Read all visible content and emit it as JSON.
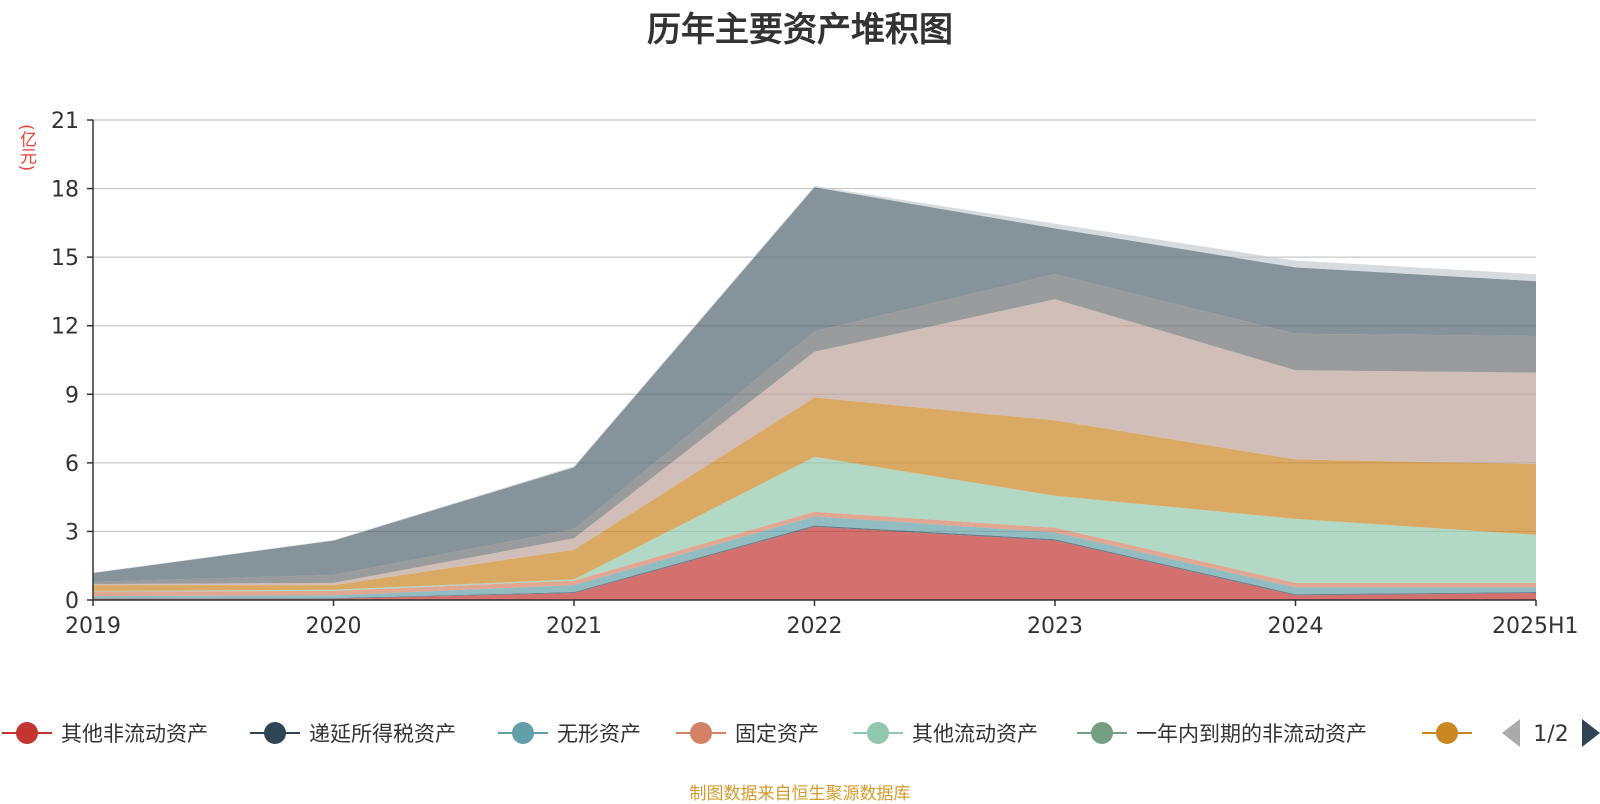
{
  "chart_data": {
    "type": "area",
    "stacked": true,
    "title": "历年主要资产堆积图",
    "unit": "(亿元)",
    "x": [
      "2019",
      "2020",
      "2021",
      "2022",
      "2023",
      "2024",
      "2025H1"
    ],
    "ylim": [
      0,
      21
    ],
    "yticks": [
      0,
      3,
      6,
      9,
      12,
      15,
      18,
      21
    ],
    "grid": true,
    "series": [
      {
        "name": "其他非流动资产",
        "color": "#c23531",
        "values": [
          0.05,
          0.05,
          0.3,
          3.2,
          2.6,
          0.2,
          0.3
        ]
      },
      {
        "name": "递延所得税资产",
        "color": "#2f4554",
        "values": [
          0.02,
          0.03,
          0.05,
          0.06,
          0.06,
          0.05,
          0.05
        ]
      },
      {
        "name": "无形资产",
        "color": "#61a0a8",
        "values": [
          0.1,
          0.12,
          0.3,
          0.4,
          0.3,
          0.3,
          0.2
        ]
      },
      {
        "name": "固定资产",
        "color": "#d48265",
        "values": [
          0.2,
          0.2,
          0.2,
          0.2,
          0.2,
          0.2,
          0.2
        ]
      },
      {
        "name": "其他流动资产",
        "color": "#91c7ae",
        "values": [
          0.03,
          0.05,
          0.05,
          2.4,
          1.4,
          2.8,
          2.1
        ]
      },
      {
        "name": "一年内到期的非流动资产",
        "color": "#749f83",
        "values": [
          0,
          0,
          0,
          0,
          0,
          0,
          0
        ]
      },
      {
        "name": "",
        "color": "#ca8622",
        "values": [
          0.25,
          0.2,
          1.3,
          2.6,
          3.3,
          2.6,
          3.1
        ]
      },
      {
        "name": "",
        "color": "#bda29a",
        "values": [
          0.05,
          0.1,
          0.5,
          2.0,
          5.3,
          3.9,
          4.0
        ]
      },
      {
        "name": "",
        "color": "#6e7074",
        "values": [
          0.1,
          0.35,
          0.4,
          0.9,
          1.1,
          1.6,
          1.6
        ]
      },
      {
        "name": "",
        "color": "#546570",
        "values": [
          0.38,
          1.5,
          2.7,
          6.3,
          2.0,
          2.9,
          2.4
        ]
      },
      {
        "name": "",
        "color": "#c4ccd3",
        "values": [
          0.02,
          0.02,
          0.05,
          0.05,
          0.2,
          0.3,
          0.3
        ]
      }
    ]
  },
  "legend": {
    "page": "1/2",
    "items": [
      {
        "label": "其他非流动资产",
        "color": "#c23531"
      },
      {
        "label": "递延所得税资产",
        "color": "#2f4554"
      },
      {
        "label": "无形资产",
        "color": "#61a0a8"
      },
      {
        "label": "固定资产",
        "color": "#d48265"
      },
      {
        "label": "其他流动资产",
        "color": "#91c7ae"
      },
      {
        "label": "一年内到期的非流动资产",
        "color": "#749f83"
      },
      {
        "label": "",
        "color": "#ca8622"
      }
    ],
    "prev_icon": "triangle-left-icon",
    "next_icon": "triangle-right-icon"
  },
  "footer": "制图数据来自恒生聚源数据库"
}
